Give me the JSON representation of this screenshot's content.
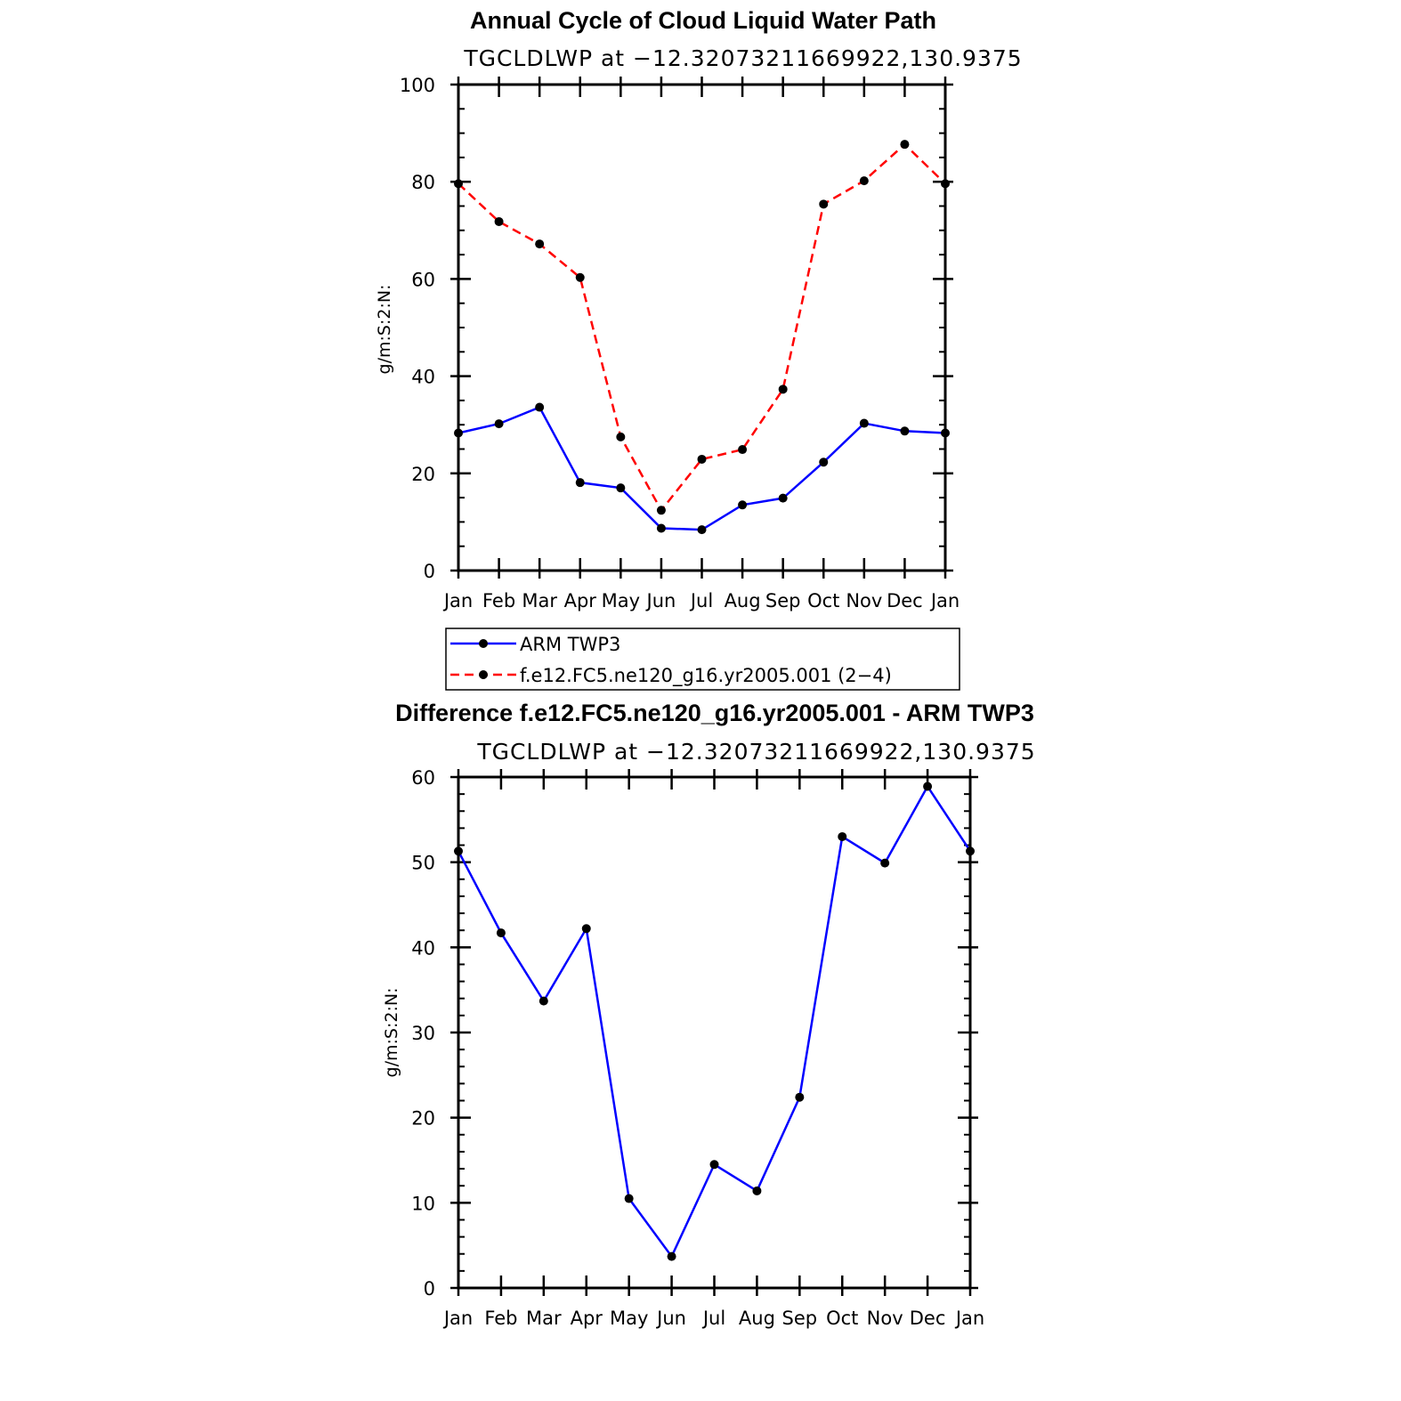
{
  "chart_data": [
    {
      "type": "line",
      "title": "Annual Cycle of Cloud Liquid Water Path",
      "subtitle": "TGCLDLWP at −12.32073211669922,130.9375",
      "xlabel": "",
      "ylabel": "g/m:S:2:N:",
      "categories": [
        "Jan",
        "Feb",
        "Mar",
        "Apr",
        "May",
        "Jun",
        "Jul",
        "Aug",
        "Sep",
        "Oct",
        "Nov",
        "Dec",
        "Jan"
      ],
      "ylim": [
        0,
        100
      ],
      "yticks": [
        0,
        20,
        40,
        60,
        80,
        100
      ],
      "series": [
        {
          "name": "ARM TWP3",
          "color": "#0000ff",
          "style": "solid",
          "values": [
            28.3,
            30.2,
            33.6,
            18.1,
            17.0,
            8.7,
            8.4,
            13.5,
            14.9,
            22.3,
            30.3,
            28.7,
            28.3
          ]
        },
        {
          "name": "f.e12.FC5.ne120_g16.yr2005.001 (2−4)",
          "color": "#ff0000",
          "style": "dashed",
          "values": [
            79.6,
            71.8,
            67.2,
            60.3,
            27.5,
            12.4,
            22.9,
            24.9,
            37.3,
            75.4,
            80.2,
            87.7,
            79.6
          ]
        }
      ],
      "legend": "below"
    },
    {
      "type": "line",
      "title": "Difference f.e12.FC5.ne120_g16.yr2005.001 - ARM TWP3",
      "subtitle": "TGCLDLWP at −12.32073211669922,130.9375",
      "xlabel": "",
      "ylabel": "g/m:S:2:N:",
      "categories": [
        "Jan",
        "Feb",
        "Mar",
        "Apr",
        "May",
        "Jun",
        "Jul",
        "Aug",
        "Sep",
        "Oct",
        "Nov",
        "Dec",
        "Jan"
      ],
      "ylim": [
        0,
        60
      ],
      "yticks": [
        0,
        10,
        20,
        30,
        40,
        50,
        60
      ],
      "series": [
        {
          "name": "Difference",
          "color": "#0000ff",
          "style": "solid",
          "values": [
            51.3,
            41.7,
            33.7,
            42.2,
            10.5,
            3.7,
            14.5,
            11.4,
            22.4,
            53.0,
            49.9,
            58.9,
            51.3
          ]
        }
      ]
    }
  ]
}
